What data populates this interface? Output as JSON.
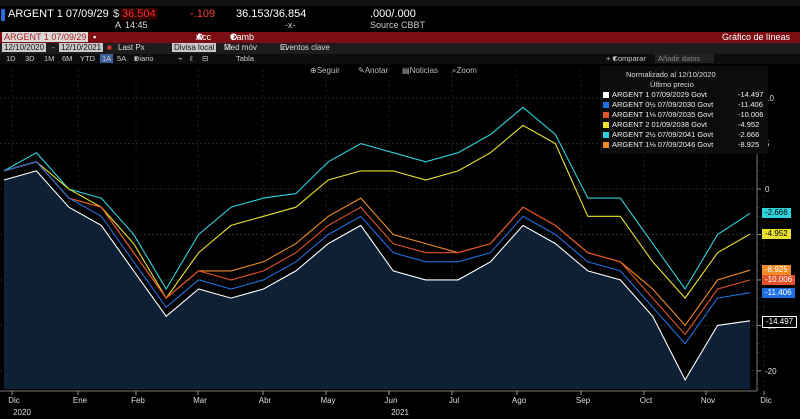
{
  "quote": {
    "ticker": "ARGENT 1 07/09/29",
    "currency": "$",
    "last": "36.504",
    "change": "-.109",
    "bid_ask": "36.153/36.854",
    "yield": ".000/.000",
    "time_prefix": "A",
    "time": "14:45",
    "cross": "-x-",
    "source": "Source CBBT"
  },
  "toolbar": {
    "ticker_field": "ARGENT 1 07/09/29",
    "acc_label": "Acc",
    "camb_label": "Camb",
    "chart_title": "Gráfico de líneas",
    "date_from": "12/10/2020",
    "date_to": "12/10/2021",
    "field": "Last Px",
    "currency_field": "Divisa local",
    "med_mov": "Med móv",
    "events": "Eventos clave"
  },
  "periods": [
    "1D",
    "3D",
    "1M",
    "6M",
    "YTD",
    "1A",
    "5A",
    "Diario"
  ],
  "period_selected": "1A",
  "period_extra": {
    "tabla": "Tabla",
    "compare": "Comparar",
    "add_data": "Añadir datos"
  },
  "tools": {
    "follow": "Seguir",
    "annotate": "Anotar",
    "news": "Noticias",
    "zoom": "Zoom"
  },
  "legend": {
    "header": "Normalizado al 12/10/2020",
    "subheader": "Último precio",
    "items": [
      {
        "label": "ARGENT 1 07/09/2029 Govt",
        "value": "-14.497",
        "color": "#ffffff"
      },
      {
        "label": "ARGENT 0½ 07/09/2030 Govt",
        "value": "-11.406",
        "color": "#1f6fe0"
      },
      {
        "label": "ARGENT 1⅛ 07/09/2035 Govt",
        "value": "-10.006",
        "color": "#e0532a"
      },
      {
        "label": "ARGENT 2 01/09/2038 Govt",
        "value": "-4.952",
        "color": "#e8e231"
      },
      {
        "label": "ARGENT 2½ 07/09/2041 Govt",
        "value": "-2.666",
        "color": "#2ed3dc"
      },
      {
        "label": "ARGENT 1⅛ 07/09/2046 Govt",
        "value": "-8.925",
        "color": "#f08a24"
      }
    ]
  },
  "colors": {
    "white": "#ffffff",
    "blue": "#1f6fe0",
    "red": "#e0532a",
    "yellow": "#e8e231",
    "cyan": "#2ed3dc",
    "orange": "#f08a24",
    "fill": "#0f2238"
  },
  "chart_data": {
    "type": "line",
    "xlabel": "",
    "ylabel": "",
    "ylim": [
      -22,
      12
    ],
    "yticks": [
      10,
      5,
      0,
      -5,
      -10,
      -15,
      -20
    ],
    "month_labels": [
      "Dic",
      "Ene",
      "Feb",
      "Mar",
      "Abr",
      "May",
      "Jun",
      "Jul",
      "Ago",
      "Sep",
      "Oct",
      "Nov",
      "Dic"
    ],
    "year_labels": [
      "2020",
      "2021"
    ],
    "x": [
      "2020-12",
      "2021-01",
      "2021-01-15",
      "2021-02",
      "2021-02-15",
      "2021-03",
      "2021-03-15",
      "2021-04",
      "2021-04-15",
      "2021-05",
      "2021-05-15",
      "2021-06",
      "2021-06-15",
      "2021-07",
      "2021-07-15",
      "2021-08",
      "2021-08-15",
      "2021-09",
      "2021-09-15",
      "2021-10",
      "2021-10-15",
      "2021-11",
      "2021-11-15",
      "2021-12"
    ],
    "series": [
      {
        "name": "ARGENT 2½ 07/09/2041 Govt",
        "color": "#2ed3dc",
        "values": [
          2,
          4,
          0,
          -1,
          -5,
          -11,
          -5,
          -2,
          -1,
          -0.5,
          3,
          5,
          4,
          3,
          4,
          6,
          9,
          6,
          -1,
          -1,
          -6,
          -11,
          -5,
          -2.666
        ]
      },
      {
        "name": "ARGENT 2 01/09/2038 Govt",
        "color": "#e8e231",
        "values": [
          2,
          3,
          0,
          -2,
          -6,
          -12,
          -7,
          -4,
          -3,
          -2,
          1,
          2,
          2,
          1,
          2,
          4,
          7,
          5,
          -3,
          -3,
          -8,
          -12,
          -7,
          -4.952
        ]
      },
      {
        "name": "ARGENT 1⅛ 07/09/2046 Govt",
        "color": "#f08a24",
        "values": [
          2,
          3,
          -1,
          -2,
          -7,
          -12,
          -9,
          -9,
          -8,
          -6,
          -3,
          -1,
          -5,
          -6,
          -7,
          -6,
          -2,
          -4,
          -7,
          -8,
          -11,
          -15,
          -10,
          -8.925
        ]
      },
      {
        "name": "ARGENT 1⅛ 07/09/2035 Govt",
        "color": "#e0532a",
        "values": [
          2,
          3,
          -1,
          -2,
          -7,
          -12,
          -9,
          -10,
          -9,
          -7,
          -4,
          -2,
          -6,
          -7,
          -7,
          -6,
          -2,
          -4,
          -7,
          -8,
          -12,
          -16,
          -11,
          -10.006
        ]
      },
      {
        "name": "ARGENT 0½ 07/09/2030 Govt",
        "color": "#1f6fe0",
        "values": [
          2,
          3,
          -1,
          -3,
          -8,
          -13,
          -10,
          -11,
          -10,
          -8,
          -5,
          -3,
          -7,
          -8,
          -8,
          -7,
          -3,
          -5,
          -8,
          -9,
          -13,
          -17,
          -12,
          -11.406
        ]
      },
      {
        "name": "ARGENT 1 07/09/2029 Govt",
        "color": "#ffffff",
        "values": [
          1,
          2,
          -2,
          -4,
          -9,
          -14,
          -11,
          -12,
          -11,
          -9,
          -6,
          -4,
          -9,
          -10,
          -10,
          -8,
          -4,
          -6,
          -9,
          -10,
          -14,
          -21,
          -15,
          -14.497
        ]
      }
    ]
  }
}
